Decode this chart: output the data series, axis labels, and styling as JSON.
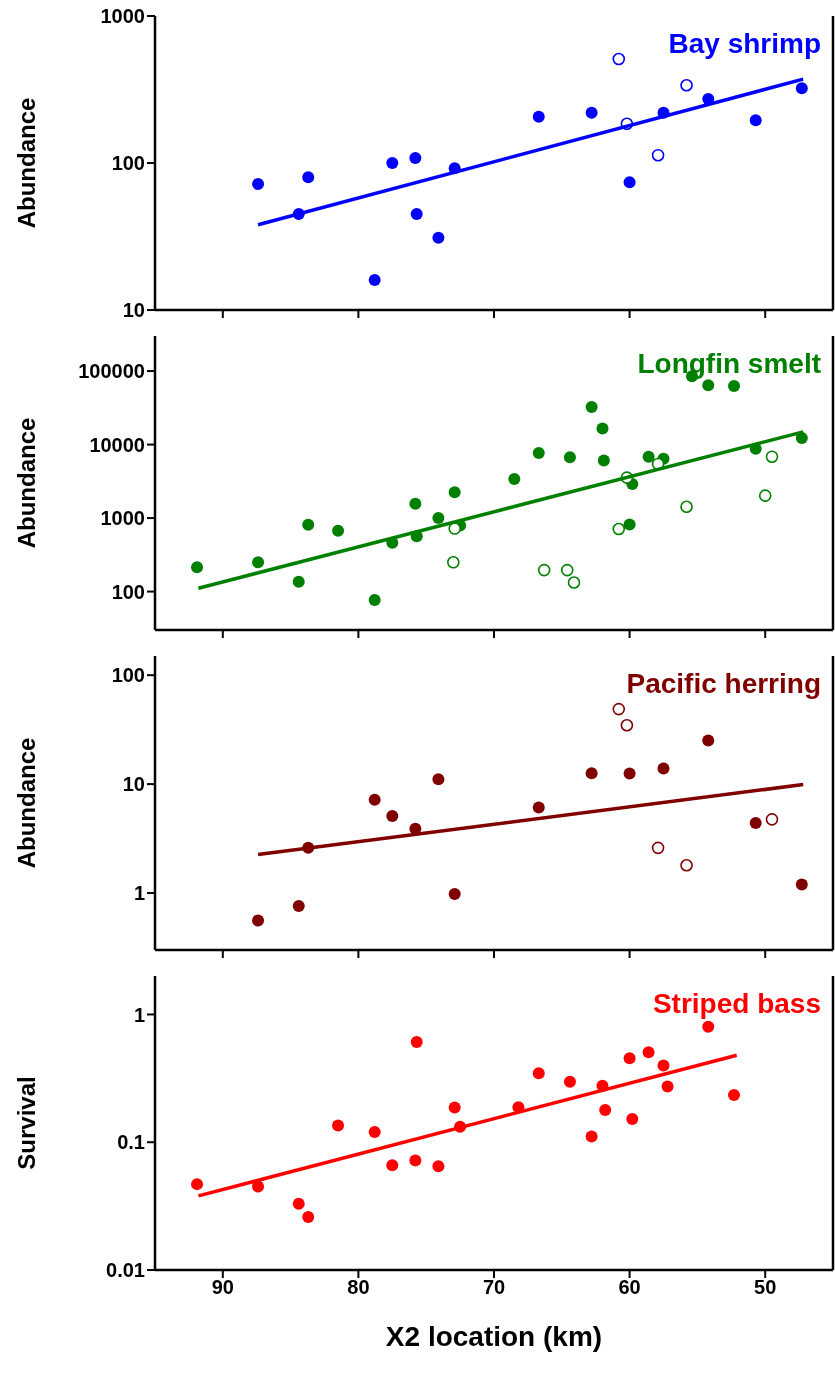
{
  "chart_data": [
    {
      "type": "scatter",
      "title": "Bay shrimp",
      "ylabel": "Abundance",
      "log": true,
      "tick_labels": "y",
      "xlim": [
        95,
        45
      ],
      "xticks": [
        90,
        80,
        70,
        60,
        50
      ],
      "ylim": [
        10,
        1000
      ],
      "yticks": [
        10,
        100,
        1000
      ],
      "series": [
        {
          "color": "#0000ff",
          "marker": "circle",
          "x": [
            87.4,
            84.4,
            83.7,
            78.8,
            77.5,
            75.8,
            75.7,
            74.1,
            72.9,
            66.7,
            62.8,
            60.0,
            57.5,
            54.2,
            50.7,
            47.3
          ],
          "values": [
            72,
            45,
            80,
            16,
            100,
            108,
            45,
            31,
            92,
            206,
            220,
            74,
            220,
            273,
            195,
            323
          ]
        },
        {
          "color": "#0000ff",
          "marker": "circle",
          "x": [
            60.8,
            60.2,
            57.9,
            55.8
          ],
          "values": [
            510,
            185,
            113,
            338
          ]
        },
        {
          "type": "line",
          "color": "#0000ff",
          "marker": "none",
          "x": [
            87.4,
            47.2
          ],
          "values": [
            38,
            372
          ]
        }
      ]
    },
    {
      "type": "scatter",
      "title": "Longfin smelt",
      "ylabel": "Abundance",
      "log": true,
      "tick_labels": "y",
      "xlim": [
        95,
        45
      ],
      "xticks": [
        90,
        80,
        70,
        60,
        50
      ],
      "ylim": [
        30,
        300000
      ],
      "yticks": [
        100,
        1000,
        10000,
        100000
      ],
      "series": [
        {
          "color": "#008000",
          "marker": "circle",
          "x": [
            91.9,
            87.4,
            84.4,
            83.7,
            81.5,
            78.8,
            77.5,
            75.7,
            75.8,
            74.1,
            72.9,
            72.5,
            68.5,
            66.7,
            64.4,
            62.8,
            62.0,
            61.9,
            59.8,
            60.0,
            58.6,
            57.5,
            55.4,
            54.2,
            52.3,
            50.7,
            47.3
          ],
          "values": [
            215,
            250,
            136,
            810,
            670,
            77,
            460,
            565,
            1570,
            1000,
            2250,
            790,
            3400,
            7700,
            6700,
            32400,
            16600,
            6070,
            2900,
            820,
            6840,
            6400,
            85000,
            64000,
            62500,
            8800,
            12300
          ]
        },
        {
          "color": "#008000",
          "marker": "circle",
          "x": [
            72.9,
            73.0,
            66.3,
            64.6,
            64.1,
            60.8,
            60.2,
            57.9,
            55.8,
            50.0,
            49.5
          ],
          "values": [
            720,
            250,
            196,
            196,
            133,
            710,
            3550,
            5450,
            1425,
            2020,
            6840
          ]
        },
        {
          "type": "line",
          "color": "#008000",
          "marker": "none",
          "x": [
            91.8,
            47.2
          ],
          "values": [
            111,
            14900
          ]
        }
      ]
    },
    {
      "type": "scatter",
      "title": "Pacific herring",
      "ylabel": "Abundance",
      "log": true,
      "tick_labels": "y",
      "xlim": [
        95,
        45
      ],
      "xticks": [
        90,
        80,
        70,
        60,
        50
      ],
      "ylim": [
        0.3,
        150
      ],
      "yticks": [
        1,
        10,
        100
      ],
      "series": [
        {
          "color": "#800000",
          "marker": "circle",
          "x": [
            87.4,
            84.4,
            83.7,
            78.8,
            77.5,
            75.8,
            74.1,
            72.9,
            66.7,
            62.8,
            60.0,
            57.5,
            54.2,
            50.7,
            47.3
          ],
          "values": [
            0.56,
            0.76,
            2.6,
            7.2,
            5.1,
            3.9,
            11.1,
            0.98,
            6.1,
            12.6,
            12.5,
            13.9,
            25.2,
            4.4,
            1.2
          ]
        },
        {
          "color": "#800000",
          "marker": "circle",
          "x": [
            60.8,
            60.2,
            57.9,
            55.8,
            49.5
          ],
          "values": [
            48.8,
            34.7,
            2.6,
            1.8,
            4.75
          ]
        },
        {
          "type": "line",
          "color": "#800000",
          "marker": "none",
          "x": [
            87.4,
            47.2
          ],
          "values": [
            2.26,
            9.9
          ]
        }
      ]
    },
    {
      "type": "scatter",
      "title": "Striped bass",
      "ylabel": "Survival",
      "xlabel": "X2 location (km)",
      "log": true,
      "xlim": [
        95,
        45
      ],
      "xticks": [
        90,
        80,
        70,
        60,
        50
      ],
      "ylim": [
        0.01,
        2
      ],
      "yticks": [
        0.01,
        0.1,
        1
      ],
      "series": [
        {
          "color": "#ff0000",
          "marker": "circle",
          "x": [
            91.9,
            87.4,
            84.4,
            83.7,
            81.5,
            78.8,
            77.5,
            75.8,
            75.7,
            74.1,
            72.9,
            72.5,
            68.2,
            66.7,
            64.4,
            62.8,
            62.0,
            61.8,
            60.0,
            59.8,
            58.6,
            57.5,
            57.2,
            54.2,
            52.3
          ],
          "values": [
            0.047,
            0.045,
            0.033,
            0.026,
            0.135,
            0.12,
            0.066,
            0.072,
            0.61,
            0.065,
            0.187,
            0.132,
            0.188,
            0.347,
            0.297,
            0.111,
            0.277,
            0.179,
            0.455,
            0.152,
            0.507,
            0.399,
            0.273,
            0.8,
            0.234
          ]
        },
        {
          "type": "line",
          "color": "#ff0000",
          "marker": "none",
          "x": [
            91.8,
            52.1
          ],
          "values": [
            0.038,
            0.48
          ]
        }
      ]
    }
  ]
}
